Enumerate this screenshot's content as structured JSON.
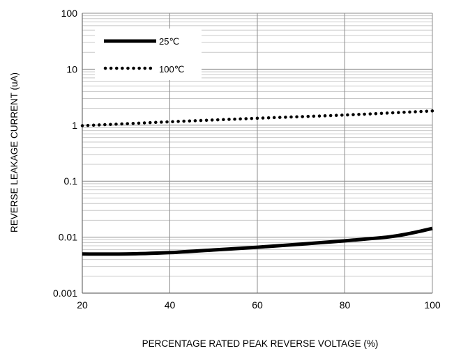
{
  "chart_data": {
    "type": "line",
    "xlabel": "PERCENTAGE RATED PEAK REVERSE VOLTAGE (%)",
    "ylabel": "REVERSE LEAKAGE CURRENT (uA)",
    "xlim": [
      20,
      100
    ],
    "ylim": [
      0.001,
      100
    ],
    "yscale": "log",
    "x_ticks": [
      "20",
      "40",
      "60",
      "80",
      "100"
    ],
    "y_ticks": [
      "0.001",
      "0.01",
      "0.1",
      "1",
      "10",
      "100"
    ],
    "grid": true,
    "legend_position": "top-left",
    "series": [
      {
        "name": "25℃",
        "style": "solid",
        "color": "#000000",
        "x": [
          20,
          30,
          40,
          50,
          60,
          70,
          80,
          90,
          95,
          100
        ],
        "y": [
          0.005,
          0.005,
          0.0053,
          0.0059,
          0.0066,
          0.0075,
          0.0086,
          0.0101,
          0.0117,
          0.0143
        ]
      },
      {
        "name": "100℃",
        "style": "dotted",
        "color": "#000000",
        "x": [
          20,
          40,
          60,
          80,
          100
        ],
        "y": [
          0.98,
          1.15,
          1.33,
          1.52,
          1.8
        ]
      }
    ]
  }
}
